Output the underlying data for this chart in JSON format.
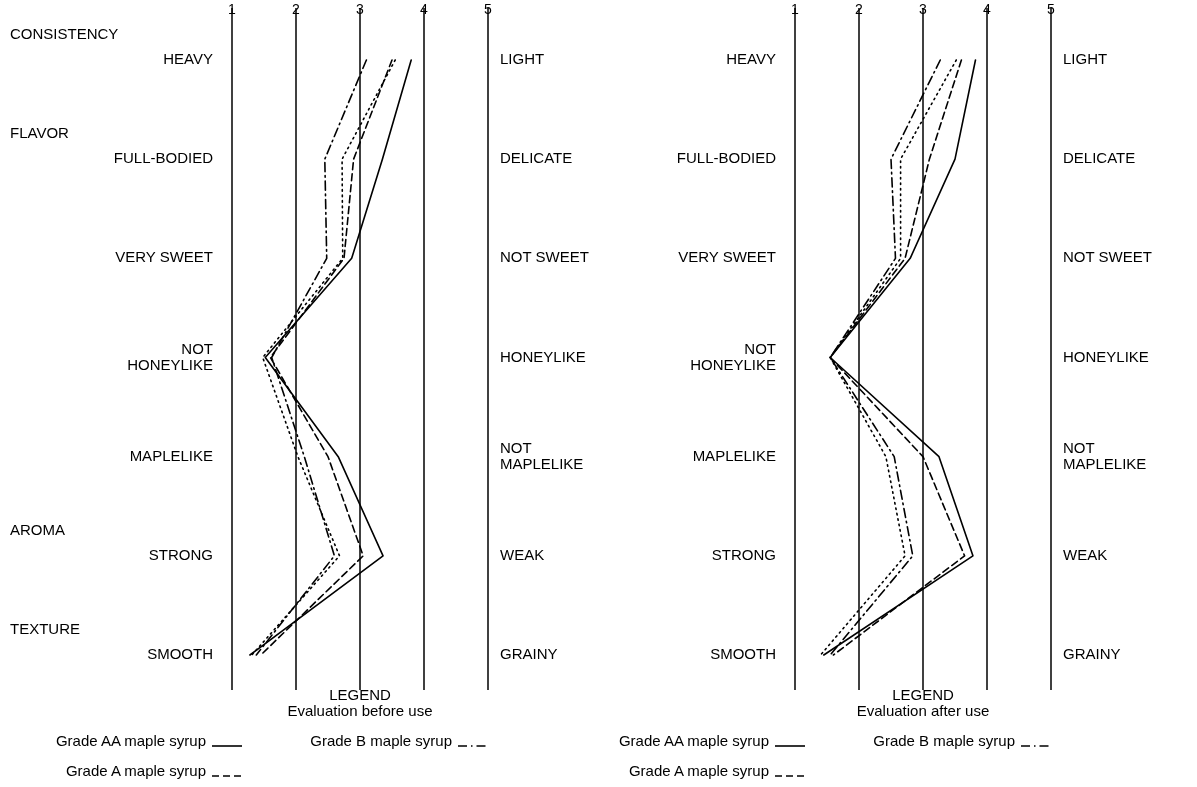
{
  "chart_data": [
    {
      "type": "line",
      "orientation": "horizontal",
      "subtitle": "Evaluation before use",
      "legend_title": "LEGEND",
      "legend": "bottom",
      "grid": "x",
      "categories": [
        "HEAVY",
        "FULL-BODIED",
        "VERY SWEET",
        "NOT HONEYLIKE",
        "MAPLELIKE",
        "STRONG",
        "SMOOTH"
      ],
      "y2_categories": [
        "LIGHT",
        "DELICATE",
        "NOT SWEET",
        "HONEYLIKE",
        "NOT MAPLELIKE",
        "WEAK",
        "GRAINY"
      ],
      "annotations": [
        "CONSISTENCY",
        "FLAVOR",
        "AROMA",
        "TEXTURE"
      ],
      "xlim": [
        1,
        5
      ],
      "xticks": [
        1,
        2,
        3,
        4,
        5
      ],
      "series": [
        {
          "name": "Grade AA maple syrup",
          "color": "#000000",
          "line_style": "solid",
          "values": [
            3.8,
            3.35,
            2.87,
            1.52,
            2.66,
            3.36,
            1.28
          ]
        },
        {
          "name": "Grade A maple syrup",
          "color": "#000000",
          "line_style": "dashed",
          "values": [
            3.5,
            2.9,
            2.75,
            1.6,
            2.5,
            3.05,
            1.45
          ]
        },
        {
          "name": "Grade B maple syrup",
          "color": "#000000",
          "line_style": "dashdot",
          "values": [
            3.1,
            2.45,
            2.48,
            1.62,
            2.13,
            2.6,
            1.38
          ]
        },
        {
          "color": "#000000",
          "line_style": "dotted",
          "values": [
            3.55,
            2.72,
            2.73,
            1.48,
            2.03,
            2.68,
            1.31
          ]
        }
      ]
    },
    {
      "type": "line",
      "orientation": "horizontal",
      "subtitle": "Evaluation after use",
      "legend_title": "LEGEND",
      "legend": "bottom",
      "grid": "x",
      "categories": [
        "HEAVY",
        "FULL-BODIED",
        "VERY SWEET",
        "NOT HONEYLIKE",
        "MAPLELIKE",
        "STRONG",
        "SMOOTH"
      ],
      "y2_categories": [
        "LIGHT",
        "DELICATE",
        "NOT SWEET",
        "HONEYLIKE",
        "NOT MAPLELIKE",
        "WEAK",
        "GRAINY"
      ],
      "xlim": [
        1,
        5
      ],
      "xticks": [
        1,
        2,
        3,
        4,
        5
      ],
      "series": [
        {
          "name": "Grade AA maple syrup",
          "color": "#000000",
          "line_style": "solid",
          "values": [
            3.82,
            3.5,
            2.8,
            1.55,
            3.25,
            3.78,
            1.45
          ]
        },
        {
          "name": "Grade A maple syrup",
          "color": "#000000",
          "line_style": "dashed",
          "values": [
            3.6,
            3.1,
            2.72,
            1.55,
            3.0,
            3.65,
            1.6
          ]
        },
        {
          "name": "Grade B maple syrup",
          "color": "#000000",
          "line_style": "dashdot",
          "values": [
            3.27,
            2.5,
            2.57,
            1.55,
            2.55,
            2.84,
            1.55
          ]
        },
        {
          "color": "#000000",
          "line_style": "dotted",
          "values": [
            3.52,
            2.65,
            2.65,
            1.55,
            2.42,
            2.72,
            1.4
          ]
        }
      ]
    }
  ]
}
